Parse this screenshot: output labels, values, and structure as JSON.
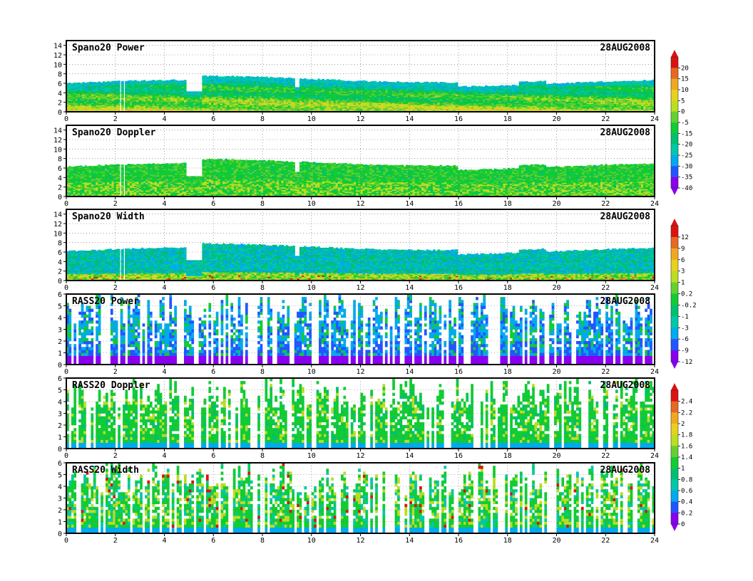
{
  "date": "28AUG2008",
  "chart_data": [
    {
      "type": "heatmap",
      "title": "Spano20  Power",
      "date": "28AUG2008",
      "xlim": [
        0,
        24
      ],
      "ylim": [
        0,
        15
      ],
      "xticks": [
        0,
        2,
        4,
        6,
        8,
        10,
        12,
        14,
        16,
        18,
        20,
        22,
        24
      ],
      "yticks": [
        0,
        2,
        4,
        6,
        8,
        10,
        12,
        14
      ],
      "grid": "dotted",
      "colorbar": {
        "ticks": [
          "20",
          "15",
          "10",
          "5",
          "0",
          "-5",
          "-15",
          "-20",
          "-25",
          "-30",
          "-35",
          "-40"
        ]
      },
      "field": {
        "style": "spano",
        "variant": "power",
        "gap_min": [
          4.9,
          5.5
        ],
        "gap_mid": [
          9.3,
          9.5
        ],
        "top_base": 6.0,
        "bands": true
      },
      "colors": [
        "#8800ee",
        "#2255ff",
        "#00aaee",
        "#00c8a8",
        "#00c070",
        "#11cc33",
        "#66d030",
        "#bbdd22",
        "#e8d020",
        "#f0a820",
        "#e86820",
        "#dd1111"
      ]
    },
    {
      "type": "heatmap",
      "title": "Spano20  Doppler",
      "date": "28AUG2008",
      "xlim": [
        0,
        24
      ],
      "ylim": [
        0,
        15
      ],
      "xticks": [
        0,
        2,
        4,
        6,
        8,
        10,
        12,
        14,
        16,
        18,
        20,
        22,
        24
      ],
      "yticks": [
        0,
        2,
        4,
        6,
        8,
        10,
        12,
        14
      ],
      "grid": "dotted",
      "field": {
        "style": "spano",
        "variant": "doppler",
        "gap_min": [
          4.9,
          5.5
        ],
        "gap_mid": [
          9.3,
          9.5
        ],
        "top_base": 6.3
      },
      "colors": [
        "#8800ee",
        "#2255ff",
        "#00aaee",
        "#00c8a8",
        "#00c070",
        "#11cc33",
        "#66d030",
        "#bbdd22",
        "#e8d020",
        "#f0a820",
        "#e86820",
        "#dd1111"
      ]
    },
    {
      "type": "heatmap",
      "title": "Spano20  Width",
      "date": "28AUG2008",
      "xlim": [
        0,
        24
      ],
      "ylim": [
        0,
        15
      ],
      "xticks": [
        0,
        2,
        4,
        6,
        8,
        10,
        12,
        14,
        16,
        18,
        20,
        22,
        24
      ],
      "yticks": [
        0,
        2,
        4,
        6,
        8,
        10,
        12,
        14
      ],
      "grid": "dotted",
      "colorbar": {
        "ticks": [
          "12",
          "9",
          "6",
          "3",
          "1",
          "0.2",
          "-0.2",
          "-1",
          "-3",
          "-6",
          "-9",
          "-12"
        ]
      },
      "field": {
        "style": "spano",
        "variant": "width",
        "gap_min": [
          4.9,
          5.5
        ],
        "gap_mid": [
          9.3,
          9.5
        ],
        "top_base": 6.2
      },
      "colors": [
        "#8800ee",
        "#2255ff",
        "#00aaee",
        "#00c8a8",
        "#00c070",
        "#11cc33",
        "#66d030",
        "#bbdd22",
        "#e8d020",
        "#f0a820",
        "#e86820",
        "#dd1111"
      ]
    },
    {
      "type": "heatmap",
      "title": "RASS20  Power",
      "date": "28AUG2008",
      "xlim": [
        0,
        24
      ],
      "ylim": [
        0,
        6
      ],
      "xticks": [
        0,
        2,
        4,
        6,
        8,
        10,
        12,
        14,
        16,
        18,
        20,
        22,
        24
      ],
      "yticks": [
        0,
        1,
        2,
        3,
        4,
        5,
        6
      ],
      "grid": "dotted",
      "field": {
        "style": "rass",
        "variant": "power"
      },
      "colors": [
        "#8800ee",
        "#2255ff",
        "#00aaee",
        "#00c8a8",
        "#00c070",
        "#11cc33",
        "#66d030",
        "#bbdd22",
        "#e8d020",
        "#f0a820",
        "#e86820",
        "#dd1111"
      ]
    },
    {
      "type": "heatmap",
      "title": "RASS20  Doppler",
      "date": "28AUG2008",
      "xlim": [
        0,
        24
      ],
      "ylim": [
        0,
        6
      ],
      "xticks": [
        0,
        2,
        4,
        6,
        8,
        10,
        12,
        14,
        16,
        18,
        20,
        22,
        24
      ],
      "yticks": [
        0,
        1,
        2,
        3,
        4,
        5,
        6
      ],
      "grid": "dotted",
      "colorbar": {
        "ticks": [
          "2.4",
          "2.2",
          "2",
          "1.8",
          "1.6",
          "1.4",
          "1",
          "0.8",
          "0.6",
          "0.4",
          "0.2",
          "0"
        ]
      },
      "field": {
        "style": "rass",
        "variant": "doppler"
      },
      "colors": [
        "#8800ee",
        "#2255ff",
        "#00aaee",
        "#00c8a8",
        "#00c070",
        "#11cc33",
        "#66d030",
        "#bbdd22",
        "#e8d020",
        "#f0a820",
        "#e86820",
        "#dd1111"
      ]
    },
    {
      "type": "heatmap",
      "title": "RASS20  Width",
      "date": "28AUG2008",
      "xlim": [
        0,
        24
      ],
      "ylim": [
        0,
        6
      ],
      "xticks": [
        0,
        2,
        4,
        6,
        8,
        10,
        12,
        14,
        16,
        18,
        20,
        22,
        24
      ],
      "yticks": [
        0,
        1,
        2,
        3,
        4,
        5,
        6
      ],
      "grid": "dotted",
      "field": {
        "style": "rass",
        "variant": "width"
      },
      "colors": [
        "#8800ee",
        "#2255ff",
        "#00aaee",
        "#00c8a8",
        "#00c070",
        "#11cc33",
        "#66d030",
        "#bbdd22",
        "#e8d020",
        "#f0a820",
        "#e86820",
        "#dd1111"
      ]
    }
  ]
}
